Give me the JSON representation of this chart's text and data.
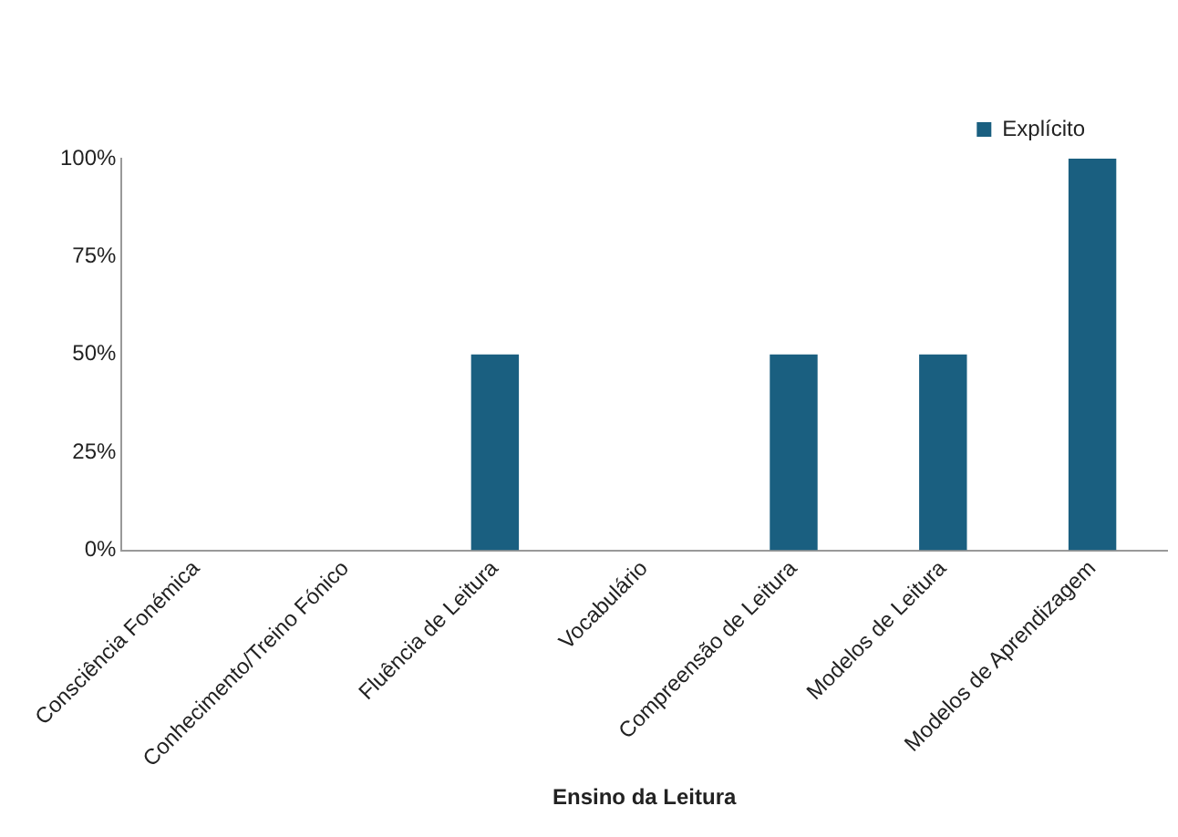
{
  "chart_data": {
    "type": "bar",
    "xlabel": "Ensino da Leitura",
    "categories": [
      "Consciência Fonémica",
      "Conhecimento/Treino Fónico",
      "Fluência de Leitura",
      "Vocabulário",
      "Compreensão de Leitura",
      "Modelos de Leitura",
      "Modelos de Aprendizagem"
    ],
    "series": [
      {
        "name": "Explícito",
        "color": "#1a5f80",
        "values": [
          0,
          0,
          50,
          0,
          50,
          50,
          100
        ]
      }
    ],
    "ylim": [
      0,
      100
    ],
    "yticks": [
      {
        "value": 0,
        "label": "0%"
      },
      {
        "value": 25,
        "label": "25%"
      },
      {
        "value": 50,
        "label": "50%"
      },
      {
        "value": 75,
        "label": "75%"
      },
      {
        "value": 100,
        "label": "100%"
      }
    ],
    "grid": false,
    "legend": "top right"
  }
}
